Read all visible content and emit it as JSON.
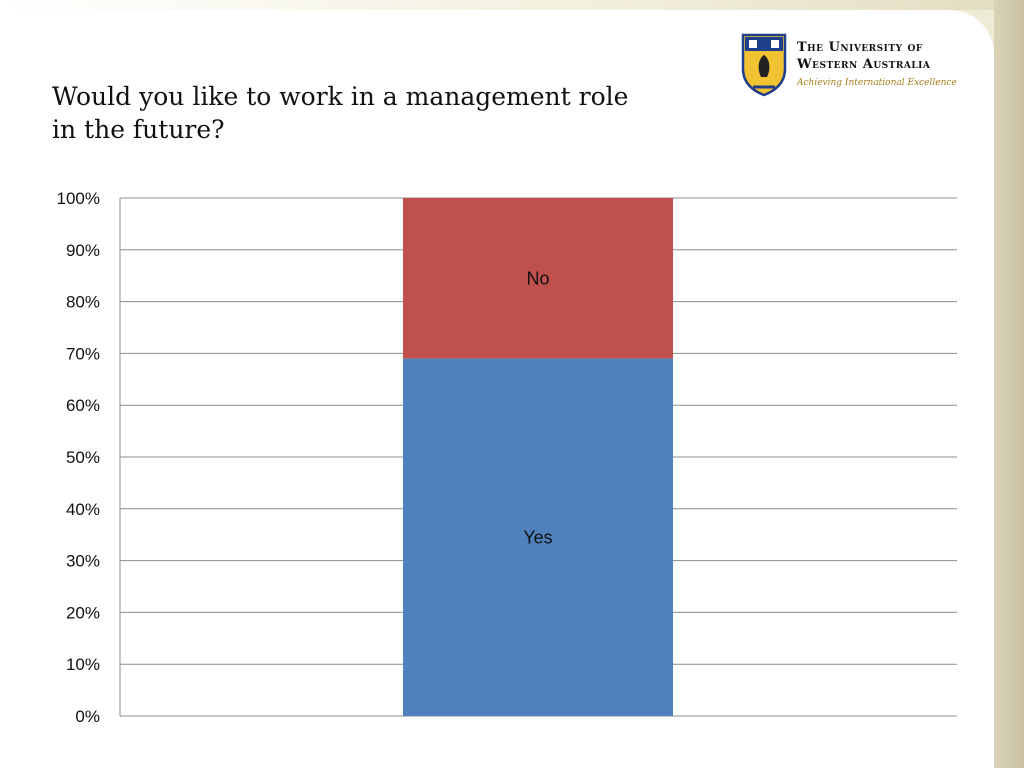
{
  "slide": {
    "title_line1": "Would you like to work in a management role",
    "title_line2": "in the future?"
  },
  "logo": {
    "line1": "The University of",
    "line2": "Western Australia",
    "motto": "Achieving International Excellence"
  },
  "chart_data": {
    "type": "bar",
    "stacked": true,
    "categories": [
      ""
    ],
    "series": [
      {
        "name": "Yes",
        "values": [
          69
        ],
        "color": "#4f81bd"
      },
      {
        "name": "No",
        "values": [
          31
        ],
        "color": "#c0504d"
      }
    ],
    "ylim": [
      0,
      100
    ],
    "yticks": [
      "0%",
      "10%",
      "20%",
      "30%",
      "40%",
      "50%",
      "60%",
      "70%",
      "80%",
      "90%",
      "100%"
    ],
    "grid": true,
    "legend": "none"
  }
}
